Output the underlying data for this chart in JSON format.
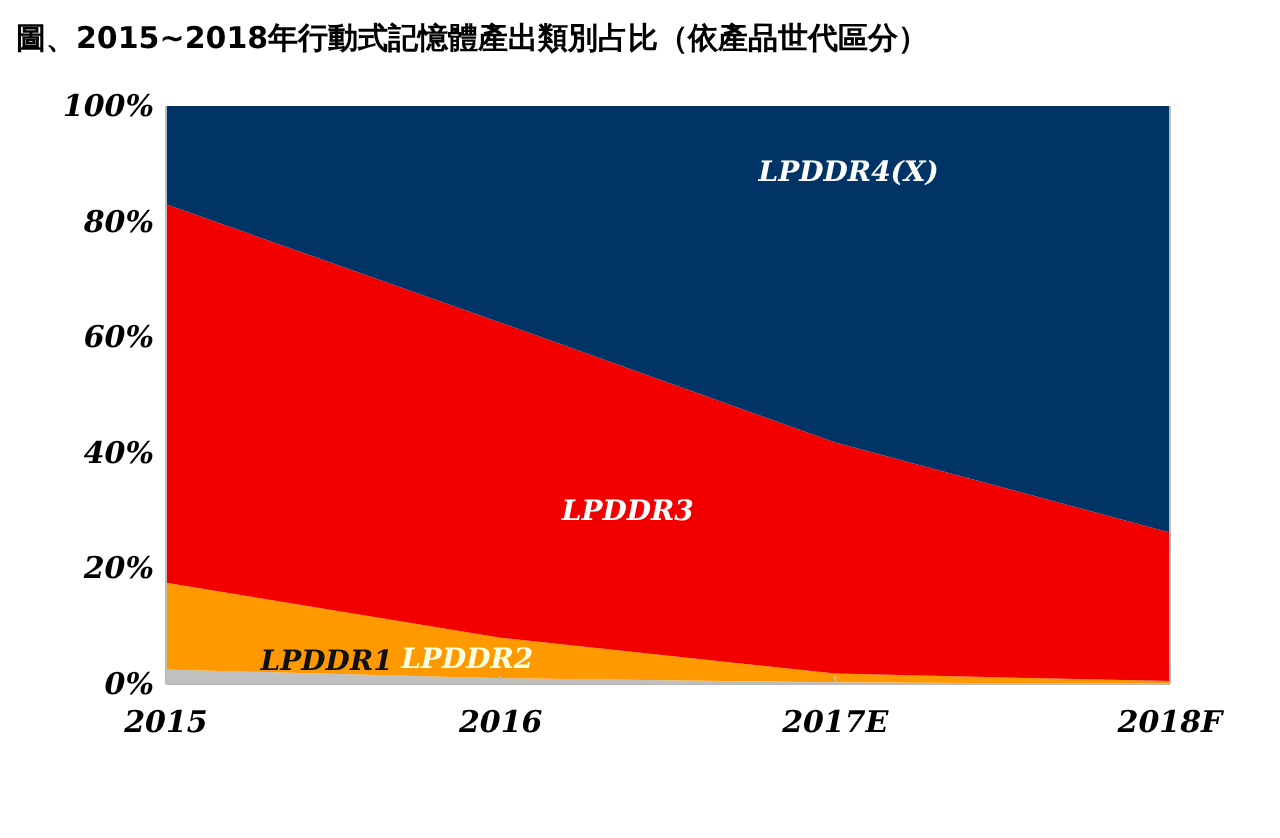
{
  "chart_data": {
    "type": "area",
    "stacked": true,
    "title": "圖、2015~2018年行動式記憶體產出類別占比（依產品世代區分）",
    "categories": [
      "2015",
      "2016",
      "2017E",
      "2018F"
    ],
    "series": [
      {
        "name": "LPDDR1",
        "color": "#c0c0c0",
        "values": [
          2.5,
          1,
          0.3,
          0
        ]
      },
      {
        "name": "LPDDR2",
        "color": "#ff9900",
        "values": [
          15,
          7,
          1.5,
          0.5
        ]
      },
      {
        "name": "LPDDR3",
        "color": "#f20000",
        "values": [
          65.5,
          54.5,
          40,
          25.7
        ]
      },
      {
        "name": "LPDDR4(X)",
        "color": "#003366",
        "values": [
          17,
          37.5,
          58.2,
          73.8
        ]
      }
    ],
    "ylim": [
      0,
      100
    ],
    "yticks": [
      {
        "value": 0,
        "label": "0%"
      },
      {
        "value": 20,
        "label": "20%"
      },
      {
        "value": 40,
        "label": "40%"
      },
      {
        "value": 60,
        "label": "60%"
      },
      {
        "value": 80,
        "label": "80%"
      },
      {
        "value": 100,
        "label": "100%"
      }
    ],
    "grid": false
  }
}
